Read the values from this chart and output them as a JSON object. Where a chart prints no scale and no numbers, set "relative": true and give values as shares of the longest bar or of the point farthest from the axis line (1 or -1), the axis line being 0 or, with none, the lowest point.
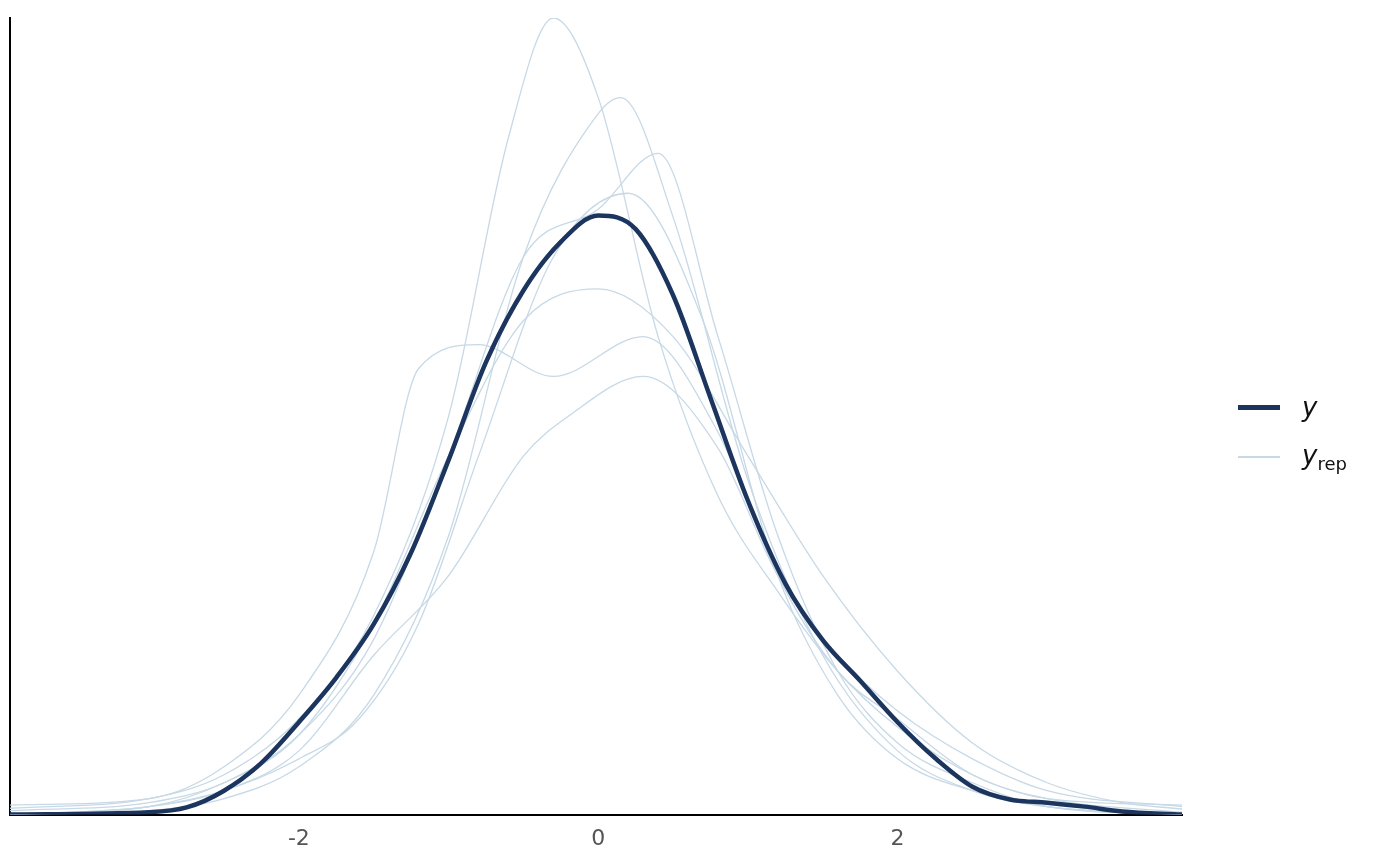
{
  "chart_data": {
    "type": "line",
    "relative": true,
    "xlim": [
      -3.93,
      3.9
    ],
    "xticks": [
      -2,
      0,
      2
    ],
    "tick_labels": "x",
    "grid": false,
    "legend": "right",
    "series": [
      {
        "name": "y",
        "color": "#1b355e",
        "x": [
          -3.93,
          -3,
          -2.75,
          -2.5,
          -2.25,
          -2,
          -1.75,
          -1.5,
          -1.25,
          -1,
          -0.75,
          -0.5,
          -0.25,
          0,
          0.25,
          0.5,
          0.75,
          1,
          1.25,
          1.5,
          1.75,
          2,
          2.25,
          2.5,
          2.75,
          3,
          3.25,
          3.5,
          3.9
        ],
        "values": [
          0,
          0.003,
          0.009,
          0.03,
          0.065,
          0.116,
          0.172,
          0.239,
          0.329,
          0.445,
          0.568,
          0.658,
          0.719,
          0.752,
          0.735,
          0.652,
          0.523,
          0.394,
          0.29,
          0.219,
          0.168,
          0.116,
          0.071,
          0.035,
          0.019,
          0.015,
          0.01,
          0.004,
          0
        ]
      },
      {
        "name": "y$_{rep}$",
        "color": "#c7d9e6",
        "x": [
          -3.93,
          -3,
          -2.5,
          -2,
          -1.5,
          -1,
          -0.6,
          -0.3,
          0,
          0.4,
          0.8,
          1.2,
          1.6,
          2,
          2.5,
          3,
          3.9
        ],
        "values": [
          0.008,
          0.02,
          0.05,
          0.12,
          0.25,
          0.5,
          0.85,
          1,
          0.9,
          0.6,
          0.4,
          0.28,
          0.18,
          0.11,
          0.05,
          0.02,
          0.012
        ]
      },
      {
        "color": "#c7d9e6",
        "x": [
          -3.93,
          -3,
          -2.5,
          -2,
          -1.5,
          -1,
          -0.5,
          0,
          0.15,
          0.5,
          1,
          1.5,
          2,
          2.5,
          3,
          3.9
        ],
        "values": [
          0,
          0.005,
          0.02,
          0.06,
          0.15,
          0.35,
          0.7,
          0.88,
          0.9,
          0.75,
          0.42,
          0.2,
          0.08,
          0.03,
          0.01,
          0
        ]
      },
      {
        "color": "#c7d9e6",
        "x": [
          -3.93,
          -3,
          -2.5,
          -2,
          -1.5,
          -1.2,
          -0.8,
          -0.3,
          0.3,
          0.8,
          1.2,
          1.6,
          2,
          2.5,
          3,
          3.9
        ],
        "values": [
          0.012,
          0.02,
          0.06,
          0.15,
          0.33,
          0.56,
          0.59,
          0.55,
          0.6,
          0.48,
          0.3,
          0.18,
          0.12,
          0.05,
          0.02,
          0.003
        ]
      },
      {
        "color": "#c7d9e6",
        "x": [
          -3.93,
          -3,
          -2.5,
          -2,
          -1.5,
          -1,
          -0.5,
          -0.2,
          0.3,
          0.8,
          1.2,
          1.6,
          2,
          2.5,
          3,
          3.9
        ],
        "values": [
          0,
          0.01,
          0.03,
          0.08,
          0.2,
          0.3,
          0.45,
          0.5,
          0.55,
          0.46,
          0.3,
          0.2,
          0.13,
          0.07,
          0.03,
          0.01
        ]
      },
      {
        "color": "#c7d9e6",
        "x": [
          -3.93,
          -3,
          -2.5,
          -2,
          -1.5,
          -1,
          -0.5,
          0,
          0.4,
          0.8,
          1.2,
          1.6,
          2,
          2.5,
          3,
          3.9
        ],
        "values": [
          0,
          0.01,
          0.04,
          0.1,
          0.22,
          0.45,
          0.7,
          0.76,
          0.83,
          0.6,
          0.35,
          0.18,
          0.09,
          0.04,
          0.01,
          0
        ]
      },
      {
        "color": "#c7d9e6",
        "x": [
          -3.93,
          -3,
          -2.5,
          -2,
          -1.5,
          -1,
          -0.5,
          0,
          0.5,
          1,
          1.5,
          2,
          2.5,
          3,
          3.5,
          3.9
        ],
        "values": [
          0.005,
          0.015,
          0.04,
          0.1,
          0.24,
          0.45,
          0.62,
          0.66,
          0.6,
          0.45,
          0.3,
          0.18,
          0.09,
          0.04,
          0.015,
          0.007
        ]
      },
      {
        "color": "#c7d9e6",
        "x": [
          -3.93,
          -3,
          -2.5,
          -2,
          -1.6,
          -1.2,
          -0.8,
          -0.3,
          0.2,
          0.7,
          1.2,
          1.6,
          2,
          2.5,
          3,
          3.9
        ],
        "values": [
          0,
          0.01,
          0.03,
          0.07,
          0.12,
          0.24,
          0.45,
          0.7,
          0.78,
          0.62,
          0.3,
          0.15,
          0.07,
          0.03,
          0.01,
          0
        ]
      }
    ]
  }
}
